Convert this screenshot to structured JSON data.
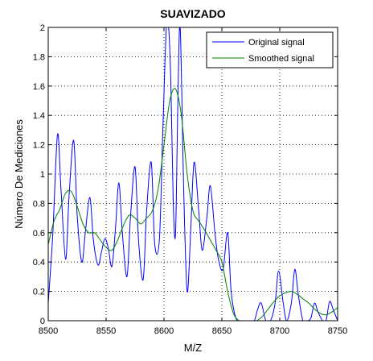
{
  "chart_data": {
    "type": "line",
    "title": "SUAVIZADO",
    "xlabel": "M/Z",
    "ylabel": "Número De Mediciones",
    "xlim": [
      8500,
      8750
    ],
    "ylim": [
      0,
      2
    ],
    "xticks": [
      "8500",
      "8550",
      "8600",
      "8650",
      "8700",
      "8750"
    ],
    "yticks": [
      "0",
      "0.2",
      "0.4",
      "0.6",
      "0.8",
      "1",
      "1.2",
      "1.4",
      "1.6",
      "1.8",
      "2"
    ],
    "grid": true,
    "legend_position": "top-right",
    "series": [
      {
        "name": "Original signal",
        "color": "#0000ff",
        "x": [
          8500,
          8504,
          8508,
          8511,
          8515,
          8518,
          8522,
          8525,
          8529,
          8532,
          8536,
          8539,
          8543,
          8546,
          8549,
          8552,
          8555,
          8558,
          8561,
          8564,
          8568,
          8571,
          8575,
          8578,
          8582,
          8585,
          8589,
          8592,
          8596,
          8599,
          8602,
          8604,
          8606,
          8608,
          8610,
          8612,
          8614,
          8617,
          8620,
          8623,
          8626,
          8630,
          8633,
          8637,
          8640,
          8644,
          8647,
          8651,
          8655,
          8658,
          8662,
          8666,
          8670,
          8674,
          8678,
          8681,
          8684,
          8688,
          8692,
          8696,
          8699,
          8703,
          8706,
          8710,
          8713,
          8716,
          8720,
          8724,
          8727,
          8730,
          8733,
          8737,
          8740,
          8743,
          8746,
          8750
        ],
        "values": [
          0.12,
          0.6,
          1.27,
          0.9,
          0.42,
          0.85,
          1.23,
          0.72,
          0.4,
          0.6,
          0.84,
          0.55,
          0.38,
          0.47,
          0.56,
          0.49,
          0.37,
          0.62,
          0.94,
          0.6,
          0.3,
          0.7,
          1.05,
          0.55,
          0.28,
          0.75,
          1.08,
          0.52,
          0.55,
          1.3,
          2.0,
          2.0,
          1.6,
          0.8,
          0.6,
          1.5,
          2.0,
          0.9,
          0.2,
          0.6,
          1.08,
          0.75,
          0.48,
          0.7,
          0.92,
          0.6,
          0.42,
          0.35,
          0.6,
          0.2,
          0.02,
          0.0,
          0.0,
          0.0,
          0.0,
          0.08,
          0.12,
          0.0,
          0.0,
          0.12,
          0.34,
          0.12,
          0.0,
          0.12,
          0.35,
          0.18,
          0.0,
          0.0,
          0.02,
          0.12,
          0.06,
          0.0,
          0.0,
          0.13,
          0.08,
          0.0
        ]
      },
      {
        "name": "Smoothed signal",
        "color": "#008000",
        "x": [
          8500,
          8505,
          8510,
          8515,
          8520,
          8525,
          8530,
          8535,
          8540,
          8545,
          8550,
          8555,
          8560,
          8565,
          8570,
          8575,
          8580,
          8585,
          8590,
          8595,
          8600,
          8605,
          8610,
          8615,
          8620,
          8625,
          8630,
          8635,
          8640,
          8645,
          8650,
          8655,
          8660,
          8665,
          8670,
          8675,
          8680,
          8685,
          8690,
          8695,
          8700,
          8705,
          8710,
          8715,
          8720,
          8725,
          8730,
          8735,
          8740,
          8745,
          8750
        ],
        "values": [
          0.52,
          0.68,
          0.76,
          0.87,
          0.88,
          0.78,
          0.66,
          0.6,
          0.6,
          0.55,
          0.5,
          0.48,
          0.55,
          0.65,
          0.72,
          0.7,
          0.66,
          0.7,
          0.75,
          0.9,
          1.2,
          1.5,
          1.58,
          1.4,
          1.0,
          0.75,
          0.68,
          0.62,
          0.55,
          0.48,
          0.4,
          0.2,
          0.05,
          0.0,
          0.0,
          0.0,
          0.0,
          0.03,
          0.08,
          0.13,
          0.17,
          0.19,
          0.2,
          0.18,
          0.15,
          0.12,
          0.08,
          0.05,
          0.04,
          0.06,
          0.09
        ]
      }
    ]
  }
}
